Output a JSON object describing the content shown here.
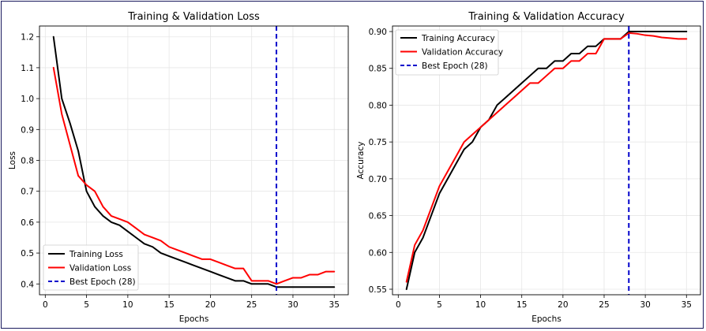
{
  "chart_data": [
    {
      "type": "line",
      "title": "Training & Validation Loss",
      "xlabel": "Epochs",
      "ylabel": "Loss",
      "xlim": [
        -0.7,
        36.7
      ],
      "ylim": [
        0.365,
        1.235
      ],
      "xticks": [
        0,
        5,
        10,
        15,
        20,
        25,
        30,
        35
      ],
      "yticks": [
        0.4,
        0.5,
        0.6,
        0.7,
        0.8,
        0.9,
        1.0,
        1.1,
        1.2
      ],
      "ytick_format": 1,
      "grid": true,
      "legend_position": "lower-left",
      "x": [
        1,
        2,
        3,
        4,
        5,
        6,
        7,
        8,
        9,
        10,
        11,
        12,
        13,
        14,
        15,
        16,
        17,
        18,
        19,
        20,
        21,
        22,
        23,
        24,
        25,
        26,
        27,
        28,
        29,
        30,
        31,
        32,
        33,
        34,
        35
      ],
      "series": [
        {
          "name": "Training Loss",
          "color": "#000000",
          "values": [
            1.2,
            1.0,
            0.92,
            0.83,
            0.7,
            0.65,
            0.62,
            0.6,
            0.59,
            0.57,
            0.55,
            0.53,
            0.52,
            0.5,
            0.49,
            0.48,
            0.47,
            0.46,
            0.45,
            0.44,
            0.43,
            0.42,
            0.41,
            0.41,
            0.4,
            0.4,
            0.4,
            0.39,
            0.39,
            0.39,
            0.39,
            0.39,
            0.39,
            0.39,
            0.39
          ]
        },
        {
          "name": "Validation Loss",
          "color": "#ff0000",
          "values": [
            1.1,
            0.95,
            0.85,
            0.75,
            0.72,
            0.7,
            0.65,
            0.62,
            0.61,
            0.6,
            0.58,
            0.56,
            0.55,
            0.54,
            0.52,
            0.51,
            0.5,
            0.49,
            0.48,
            0.48,
            0.47,
            0.46,
            0.45,
            0.45,
            0.41,
            0.41,
            0.41,
            0.4,
            0.41,
            0.42,
            0.42,
            0.43,
            0.43,
            0.44,
            0.44
          ]
        }
      ],
      "vline": {
        "name": "Best Epoch (28)",
        "x": 28,
        "color": "#0000cc"
      }
    },
    {
      "type": "line",
      "title": "Training & Validation Accuracy",
      "xlabel": "Epochs",
      "ylabel": "Accuracy",
      "xlim": [
        -0.7,
        36.7
      ],
      "ylim": [
        0.5425,
        0.9075
      ],
      "xticks": [
        0,
        5,
        10,
        15,
        20,
        25,
        30,
        35
      ],
      "yticks": [
        0.55,
        0.6,
        0.65,
        0.7,
        0.75,
        0.8,
        0.85,
        0.9
      ],
      "ytick_format": 2,
      "grid": true,
      "legend_position": "upper-left",
      "x": [
        1,
        2,
        3,
        4,
        5,
        6,
        7,
        8,
        9,
        10,
        11,
        12,
        13,
        14,
        15,
        16,
        17,
        18,
        19,
        20,
        21,
        22,
        23,
        24,
        25,
        26,
        27,
        28,
        29,
        30,
        31,
        32,
        33,
        34,
        35
      ],
      "series": [
        {
          "name": "Training Accuracy",
          "color": "#000000",
          "values": [
            0.55,
            0.6,
            0.62,
            0.65,
            0.68,
            0.7,
            0.72,
            0.74,
            0.75,
            0.77,
            0.78,
            0.8,
            0.81,
            0.82,
            0.83,
            0.84,
            0.85,
            0.85,
            0.86,
            0.86,
            0.87,
            0.87,
            0.88,
            0.88,
            0.89,
            0.89,
            0.89,
            0.9,
            0.9,
            0.9,
            0.9,
            0.9,
            0.9,
            0.9,
            0.9
          ]
        },
        {
          "name": "Validation Accuracy",
          "color": "#ff0000",
          "values": [
            0.56,
            0.61,
            0.63,
            0.66,
            0.69,
            0.71,
            0.73,
            0.75,
            0.76,
            0.77,
            0.78,
            0.79,
            0.8,
            0.81,
            0.82,
            0.83,
            0.83,
            0.84,
            0.85,
            0.85,
            0.86,
            0.86,
            0.87,
            0.87,
            0.89,
            0.89,
            0.89,
            0.898,
            0.897,
            0.895,
            0.894,
            0.892,
            0.891,
            0.89,
            0.89
          ]
        }
      ],
      "vline": {
        "name": "Best Epoch (28)",
        "x": 28,
        "color": "#0000cc"
      }
    }
  ]
}
